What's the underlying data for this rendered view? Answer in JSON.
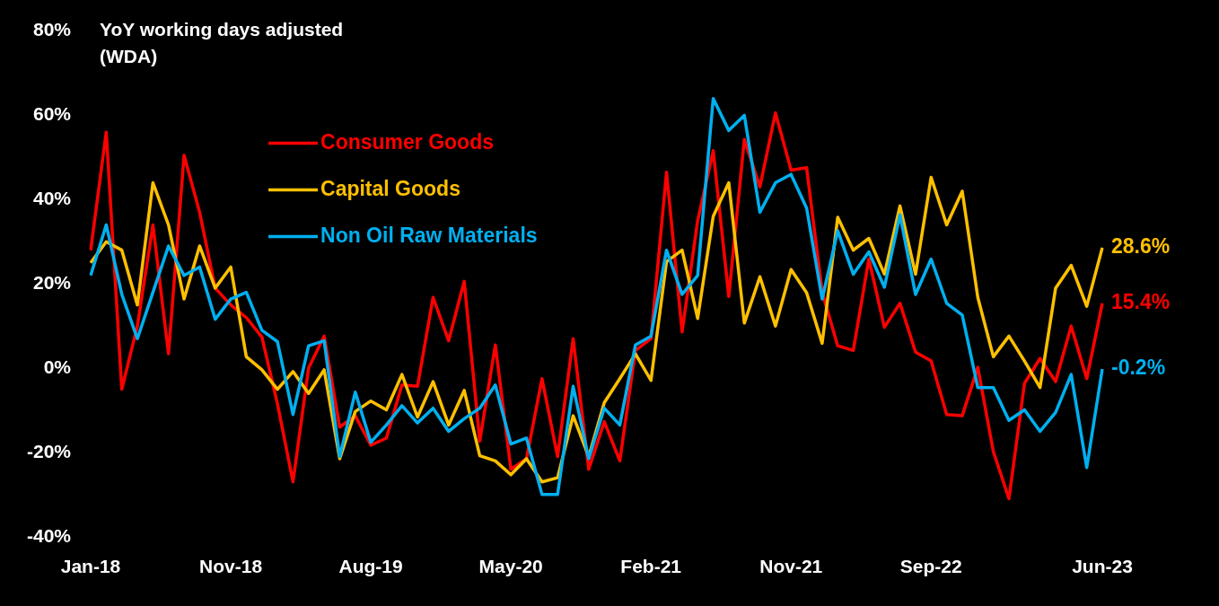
{
  "chart_data": {
    "type": "line",
    "title": "YoY working days adjusted (WDA)",
    "legend": "top left",
    "marker": "none",
    "categories": [
      "Jan-18",
      null,
      null,
      null,
      null,
      null,
      null,
      null,
      null,
      "Nov-18",
      null,
      null,
      null,
      null,
      null,
      null,
      null,
      null,
      "Aug-19",
      null,
      null,
      null,
      null,
      null,
      null,
      null,
      null,
      "May-20",
      null,
      null,
      null,
      null,
      null,
      null,
      null,
      null,
      "Feb-21",
      null,
      null,
      null,
      null,
      null,
      null,
      null,
      null,
      "Nov-21",
      null,
      null,
      null,
      null,
      null,
      null,
      null,
      null,
      "Sep-22",
      null,
      null,
      null,
      null,
      null,
      null,
      null,
      null,
      null,
      null,
      "Jun-23"
    ],
    "ylim": [
      -40,
      80
    ],
    "yticks": [
      {
        "value": -40,
        "label": "-40%"
      },
      {
        "value": -20,
        "label": "-20%"
      },
      {
        "value": 0,
        "label": "0%"
      },
      {
        "value": 20,
        "label": "20%"
      },
      {
        "value": 40,
        "label": "40%"
      },
      {
        "value": 60,
        "label": "60%"
      },
      {
        "value": 80,
        "label": "80%"
      }
    ],
    "series": [
      {
        "name": "Consumer Goods",
        "color": "#ff0000",
        "values": [
          28,
          56,
          -5,
          10,
          34,
          3.4,
          50.5,
          37,
          19,
          15,
          12,
          7.4,
          -8.5,
          -27,
          0,
          7.6,
          -14,
          -11.3,
          -18.3,
          -16.6,
          -4,
          -4.3,
          16.8,
          6.5,
          20.6,
          -17.3,
          5.5,
          -24,
          -21.5,
          -2.5,
          -21,
          7,
          -24,
          -12.7,
          -22,
          4.2,
          7,
          46.5,
          8.6,
          35,
          51.6,
          17,
          54.3,
          43,
          60.6,
          47,
          47.6,
          18,
          5.3,
          4.2,
          25.9,
          9.7,
          15.4,
          3.8,
          1.7,
          -11,
          -11.3,
          0.2,
          -19.8,
          -31,
          -3.6,
          2.3,
          -3.2,
          10,
          -2.5,
          15.4
        ],
        "value_labels": [
          null,
          null,
          null,
          null,
          null,
          null,
          null,
          null,
          null,
          null,
          null,
          null,
          null,
          null,
          null,
          null,
          null,
          null,
          null,
          null,
          null,
          null,
          null,
          null,
          null,
          null,
          null,
          null,
          null,
          null,
          null,
          null,
          null,
          null,
          null,
          null,
          null,
          null,
          null,
          null,
          null,
          null,
          null,
          null,
          null,
          null,
          null,
          null,
          null,
          null,
          null,
          null,
          null,
          null,
          null,
          null,
          null,
          null,
          null,
          null,
          null,
          null,
          null,
          null,
          null,
          "15.4%"
        ]
      },
      {
        "name": "Capital Goods",
        "color": "#ffc000",
        "values": [
          25,
          30,
          28,
          15,
          44,
          34,
          16.4,
          29,
          19,
          24,
          2.7,
          -0.4,
          -5,
          -0.8,
          -6,
          -0.4,
          -21.5,
          -10.3,
          -7.8,
          -9.9,
          -1.5,
          -11.6,
          -3.2,
          -13.5,
          -5.3,
          -20.8,
          -22,
          -25.3,
          -21.5,
          -27,
          -26,
          -11.3,
          -21,
          -8.2,
          -2.5,
          3.4,
          -2.9,
          25.3,
          28,
          11.8,
          36,
          44,
          10.7,
          21.7,
          10,
          23.4,
          17.9,
          5.9,
          35.8,
          28,
          30.8,
          22.3,
          38.5,
          22.3,
          45.3,
          34,
          42,
          16.8,
          2.7,
          7.6,
          1.7,
          -4.6,
          19,
          24.4,
          14.7,
          28.6
        ],
        "value_labels": [
          null,
          null,
          null,
          null,
          null,
          null,
          null,
          null,
          null,
          null,
          null,
          null,
          null,
          null,
          null,
          null,
          null,
          null,
          null,
          null,
          null,
          null,
          null,
          null,
          null,
          null,
          null,
          null,
          null,
          null,
          null,
          null,
          null,
          null,
          null,
          null,
          null,
          null,
          null,
          null,
          null,
          null,
          null,
          null,
          null,
          null,
          null,
          null,
          null,
          null,
          null,
          null,
          null,
          null,
          null,
          null,
          null,
          null,
          null,
          null,
          null,
          null,
          null,
          null,
          null,
          "28.6%"
        ]
      },
      {
        "name": "Non Oil Raw Materials",
        "color": "#00b0f0",
        "values": [
          22,
          34,
          17.5,
          7,
          18,
          29,
          22,
          24,
          11.6,
          16.4,
          18,
          9,
          6.3,
          -11,
          5.3,
          6.5,
          -21,
          -5.7,
          -17.6,
          -13.5,
          -8.9,
          -13,
          -9.5,
          -15,
          -12,
          -9.5,
          -4,
          -18,
          -16.6,
          -30,
          -30,
          -4.3,
          -21.5,
          -9.5,
          -13.5,
          5.5,
          7.6,
          28,
          17.5,
          22,
          64,
          56.4,
          60,
          37,
          44,
          46,
          38,
          16.4,
          32.6,
          22.3,
          27.6,
          19.2,
          36.4,
          17.5,
          25.9,
          15.4,
          12.6,
          -4.6,
          -4.6,
          -12.4,
          -9.9,
          -15,
          -10.5,
          -1.5,
          -23.6,
          -0.2
        ],
        "value_labels": [
          null,
          null,
          null,
          null,
          null,
          null,
          null,
          null,
          null,
          null,
          null,
          null,
          null,
          null,
          null,
          null,
          null,
          null,
          null,
          null,
          null,
          null,
          null,
          null,
          null,
          null,
          null,
          null,
          null,
          null,
          null,
          null,
          null,
          null,
          null,
          null,
          null,
          null,
          null,
          null,
          null,
          null,
          null,
          null,
          null,
          null,
          null,
          null,
          null,
          null,
          null,
          null,
          null,
          null,
          null,
          null,
          null,
          null,
          null,
          null,
          null,
          null,
          null,
          null,
          null,
          "-0.2%"
        ]
      }
    ]
  }
}
